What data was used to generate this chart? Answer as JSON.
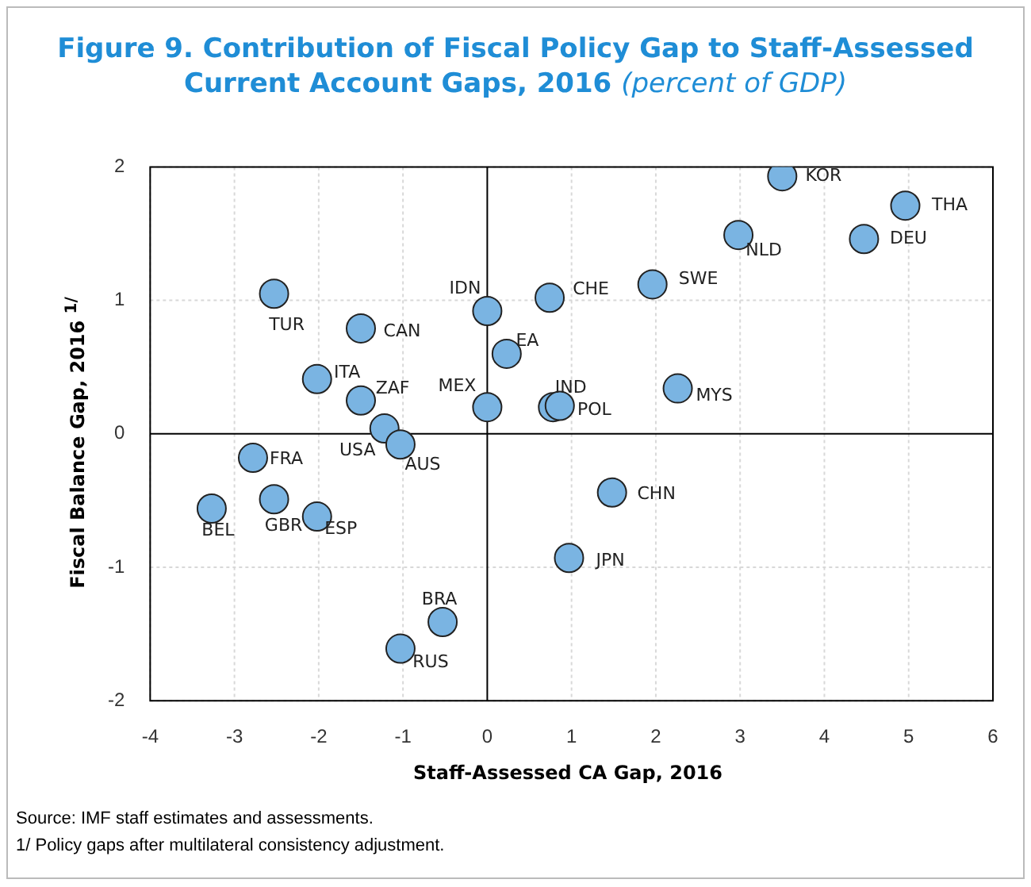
{
  "chart_data": {
    "type": "scatter",
    "title": "Figure 9. Contribution of Fiscal Policy Gap to Staff-Assessed Current Account Gaps, 2016",
    "subtitle": "(percent of GDP)",
    "xlabel": "Staff-Assessed CA Gap, 2016",
    "ylabel": "Fiscal Balance Gap, 2016 $^{1/}$",
    "x": [
      3.5,
      4.96,
      4.47,
      2.98,
      1.96,
      0.74,
      0,
      0.23,
      0,
      0.78,
      0.86,
      2.26,
      1.48,
      0.97,
      -2.53,
      -1.5,
      -2.02,
      -1.5,
      -1.22,
      -1.03,
      -2.78,
      -2.53,
      -2.02,
      -3.27,
      -0.53,
      -1.03
    ],
    "series": [
      {
        "color": "#7ab4e2",
        "values": [
          1.93,
          1.71,
          1.46,
          1.49,
          1.12,
          1.02,
          0.92,
          0.6,
          0.2,
          0.2,
          0.21,
          0.34,
          -0.44,
          -0.93,
          1.05,
          0.79,
          0.41,
          0.25,
          0.04,
          -0.08,
          -0.18,
          -0.49,
          -0.62,
          -0.56,
          -1.41,
          -1.61
        ]
      }
    ],
    "annotations": [
      {
        "text": "KOR",
        "x": 3.5,
        "y": 1.93
      },
      {
        "text": "THA",
        "x": 4.96,
        "y": 1.71
      },
      {
        "text": "DEU",
        "x": 4.47,
        "y": 1.46
      },
      {
        "text": "NLD",
        "x": 2.98,
        "y": 1.49
      },
      {
        "text": "SWE",
        "x": 1.96,
        "y": 1.12
      },
      {
        "text": "CHE",
        "x": 0.74,
        "y": 1.02
      },
      {
        "text": "IDN",
        "x": 0,
        "y": 0.92
      },
      {
        "text": "EA",
        "x": 0.23,
        "y": 0.6
      },
      {
        "text": "MEX",
        "x": 0,
        "y": 0.2
      },
      {
        "text": "POL",
        "x": 0.78,
        "y": 0.2
      },
      {
        "text": "IND",
        "x": 0.86,
        "y": 0.21
      },
      {
        "text": "MYS",
        "x": 2.26,
        "y": 0.34
      },
      {
        "text": "CHN",
        "x": 1.48,
        "y": -0.44
      },
      {
        "text": "JPN",
        "x": 0.97,
        "y": -0.93
      },
      {
        "text": "TUR",
        "x": -2.53,
        "y": 1.05
      },
      {
        "text": "CAN",
        "x": -1.5,
        "y": 0.79
      },
      {
        "text": "ITA",
        "x": -2.02,
        "y": 0.41
      },
      {
        "text": "ZAF",
        "x": -1.5,
        "y": 0.25
      },
      {
        "text": "USA",
        "x": -1.22,
        "y": 0.04
      },
      {
        "text": "AUS",
        "x": -1.03,
        "y": -0.08
      },
      {
        "text": "FRA",
        "x": -2.78,
        "y": -0.18
      },
      {
        "text": "GBR",
        "x": -2.53,
        "y": -0.49
      },
      {
        "text": "ESP",
        "x": -2.02,
        "y": -0.62
      },
      {
        "text": "BEL",
        "x": -3.27,
        "y": -0.56
      },
      {
        "text": "BRA",
        "x": -0.53,
        "y": -1.41
      },
      {
        "text": "RUS",
        "x": -1.03,
        "y": -1.61
      },
      "Source: IMF staff estimates and assessments.",
      "1/ Policy gaps after multilateral consistency adjustment."
    ],
    "xlim": [
      -4,
      6
    ],
    "xticks": [
      -4,
      -3,
      -2,
      -1,
      0,
      1,
      2,
      3,
      4,
      5,
      6
    ],
    "ylim": [
      -2,
      2
    ],
    "yticks": [
      -2,
      -1,
      0,
      1,
      2
    ],
    "grid": true,
    "legend": false,
    "marker": "circle"
  }
}
